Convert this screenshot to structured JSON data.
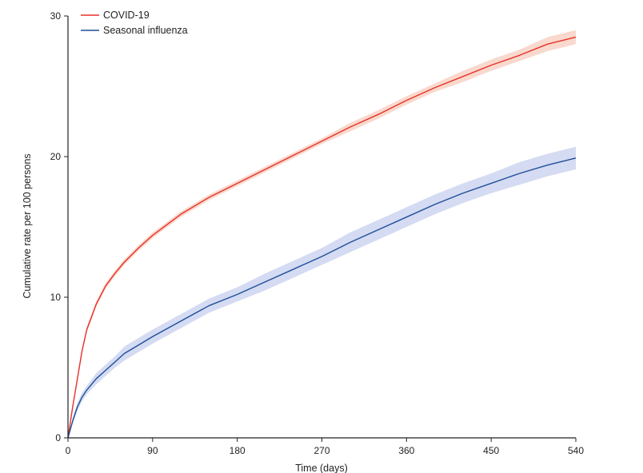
{
  "chart_data": {
    "type": "line",
    "xlabel": "Time (days)",
    "ylabel": "Cumulative rate per 100 persons",
    "xlim": [
      0,
      540
    ],
    "ylim": [
      0,
      30
    ],
    "x_ticks": [
      0,
      90,
      180,
      270,
      360,
      450,
      540
    ],
    "y_ticks": [
      0,
      10,
      20,
      30
    ],
    "grid": false,
    "legend": "top-left",
    "x": [
      0,
      5,
      10,
      15,
      20,
      30,
      40,
      50,
      60,
      75,
      90,
      120,
      150,
      180,
      210,
      240,
      270,
      300,
      330,
      360,
      390,
      420,
      450,
      480,
      510,
      540
    ],
    "series": [
      {
        "name": "COVID-19",
        "color": "#e8302a",
        "band_color": "#f8d2c4",
        "values": [
          0,
          2.2,
          4.2,
          6.2,
          7.7,
          9.5,
          10.8,
          11.7,
          12.5,
          13.5,
          14.4,
          15.9,
          17.1,
          18.1,
          19.1,
          20.1,
          21.1,
          22.1,
          23.0,
          24.0,
          24.9,
          25.7,
          26.5,
          27.2,
          28.0,
          28.5
        ],
        "lower": [
          0,
          2.1,
          4.0,
          6.0,
          7.5,
          9.3,
          10.6,
          11.5,
          12.3,
          13.3,
          14.2,
          15.7,
          16.9,
          17.9,
          18.9,
          19.9,
          20.9,
          21.8,
          22.7,
          23.7,
          24.6,
          25.3,
          26.1,
          26.8,
          27.5,
          28.0
        ],
        "upper": [
          0,
          2.3,
          4.4,
          6.4,
          7.9,
          9.7,
          11.0,
          11.9,
          12.7,
          13.7,
          14.6,
          16.1,
          17.3,
          18.3,
          19.3,
          20.3,
          21.3,
          22.4,
          23.3,
          24.3,
          25.2,
          26.1,
          26.9,
          27.6,
          28.5,
          29.0
        ]
      },
      {
        "name": "Seasonal influenza",
        "color": "#1f4e99",
        "band_color": "#ccd5f0",
        "values": [
          0,
          1.2,
          2.2,
          2.9,
          3.4,
          4.2,
          4.8,
          5.4,
          6.0,
          6.6,
          7.2,
          8.3,
          9.4,
          10.2,
          11.1,
          12.0,
          12.9,
          13.9,
          14.8,
          15.7,
          16.6,
          17.4,
          18.1,
          18.8,
          19.4,
          19.9
        ],
        "lower": [
          0,
          1.0,
          1.9,
          2.6,
          3.1,
          3.8,
          4.4,
          5.0,
          5.5,
          6.1,
          6.7,
          7.8,
          8.9,
          9.7,
          10.5,
          11.4,
          12.3,
          13.2,
          14.1,
          15.0,
          15.9,
          16.7,
          17.4,
          18.0,
          18.6,
          19.1
        ],
        "upper": [
          0,
          1.4,
          2.5,
          3.2,
          3.7,
          4.6,
          5.2,
          5.8,
          6.5,
          7.1,
          7.7,
          8.8,
          9.9,
          10.7,
          11.7,
          12.6,
          13.5,
          14.6,
          15.5,
          16.4,
          17.3,
          18.1,
          18.8,
          19.6,
          20.2,
          20.7
        ]
      }
    ]
  }
}
